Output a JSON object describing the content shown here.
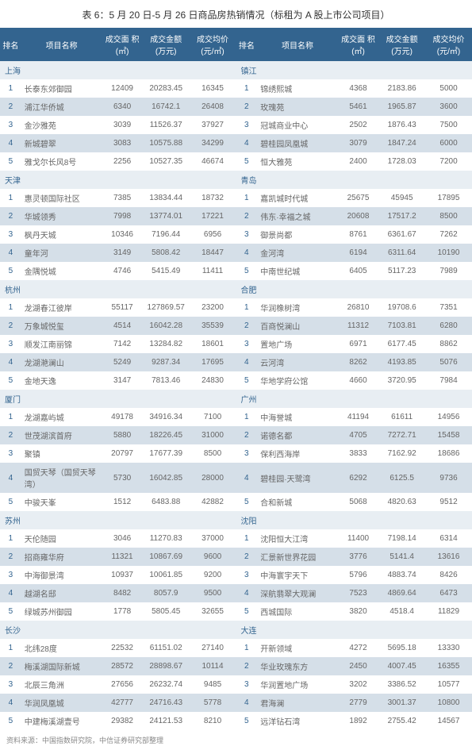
{
  "title": "表 6：5 月 20 日-5 月 26 日商品房热销情况（标租为 A 股上市公司项目）",
  "headers": {
    "rank": "排名",
    "name": "项目名称",
    "area": "成交面\n积(㎡)",
    "amount": "成交金额\n(万元)",
    "price": "成交均价\n(元/㎡)"
  },
  "source": "资料来源：中国指数研究院，中信证券研究部整理",
  "colors": {
    "header_bg": "#33648f",
    "header_fg": "#ffffff",
    "city_bg": "#e8eef3",
    "city_fg": "#33648f",
    "row_alt_bg": "#d5dfe8",
    "text": "#666666",
    "bg": "#ffffff"
  },
  "blocks": [
    {
      "left_city": "上海",
      "right_city": "镇江",
      "rows": [
        {
          "rank": 1,
          "ln": "长泰东郊御园",
          "la": 12409,
          "lm": "20283.45",
          "lp": 16345,
          "rn": "锦绣熙城",
          "ra": 4368,
          "rm": "2183.86",
          "rp": 5000
        },
        {
          "rank": 2,
          "ln": "浦江华侨城",
          "la": 6340,
          "lm": "16742.1",
          "lp": 26408,
          "rn": "玫瑰苑",
          "ra": 5461,
          "rm": "1965.87",
          "rp": 3600
        },
        {
          "rank": 3,
          "ln": "金沙雅苑",
          "la": 3039,
          "lm": "11526.37",
          "lp": 37927,
          "rn": "冠城商业中心",
          "ra": 2502,
          "rm": "1876.43",
          "rp": 7500
        },
        {
          "rank": 4,
          "ln": "新城碧翠",
          "la": 3083,
          "lm": "10575.88",
          "lp": 34299,
          "rn": "碧桂园凤凰城",
          "ra": 3079,
          "rm": "1847.24",
          "rp": 6000
        },
        {
          "rank": 5,
          "ln": "雅戈尔长风8号",
          "la": 2256,
          "lm": "10527.35",
          "lp": 46674,
          "rn": "恒大雅苑",
          "ra": 2400,
          "rm": "1728.03",
          "rp": 7200
        }
      ]
    },
    {
      "left_city": "天津",
      "right_city": "青岛",
      "rows": [
        {
          "rank": 1,
          "ln": "惠灵顿国际社区",
          "la": 7385,
          "lm": "13834.44",
          "lp": 18732,
          "rn": "嘉凯城时代城",
          "ra": 25675,
          "rm": "45945",
          "rp": 17895
        },
        {
          "rank": 2,
          "ln": "华城领秀",
          "la": 7998,
          "lm": "13774.01",
          "lp": 17221,
          "rn": "伟东·幸福之城",
          "ra": 20608,
          "rm": "17517.2",
          "rp": 8500
        },
        {
          "rank": 3,
          "ln": "枫丹天城",
          "la": 10346,
          "lm": "7196.44",
          "lp": 6956,
          "rn": "御景尚都",
          "ra": 8761,
          "rm": "6361.67",
          "rp": 7262
        },
        {
          "rank": 4,
          "ln": "童年河",
          "la": 3149,
          "lm": "5808.42",
          "lp": 18447,
          "rn": "金河湾",
          "ra": 6194,
          "rm": "6311.64",
          "rp": 10190
        },
        {
          "rank": 5,
          "ln": "金隅悦城",
          "la": 4746,
          "lm": "5415.49",
          "lp": 11411,
          "rn": "中南世纪城",
          "ra": 6405,
          "rm": "5117.23",
          "rp": 7989
        }
      ]
    },
    {
      "left_city": "杭州",
      "right_city": "合肥",
      "rows": [
        {
          "rank": 1,
          "ln": "龙湖春江彼岸",
          "la": 55117,
          "lm": "127869.57",
          "lp": 23200,
          "rn": "华润橡树湾",
          "ra": 26810,
          "rm": "19708.6",
          "rp": 7351
        },
        {
          "rank": 2,
          "ln": "万象城悦玺",
          "la": 4514,
          "lm": "16042.28",
          "lp": 35539,
          "rn": "百商悦澜山",
          "ra": 11312,
          "rm": "7103.81",
          "rp": 6280
        },
        {
          "rank": 3,
          "ln": "顺发江南丽锦",
          "la": 7142,
          "lm": "13284.82",
          "lp": 18601,
          "rn": "置地广场",
          "ra": 6971,
          "rm": "6177.45",
          "rp": 8862
        },
        {
          "rank": 4,
          "ln": "龙湖滟澜山",
          "la": 5249,
          "lm": "9287.34",
          "lp": 17695,
          "rn": "云河湾",
          "ra": 8262,
          "rm": "4193.85",
          "rp": 5076
        },
        {
          "rank": 5,
          "ln": "金地天逸",
          "la": 3147,
          "lm": "7813.46",
          "lp": 24830,
          "rn": "华地学府公馆",
          "ra": 4660,
          "rm": "3720.95",
          "rp": 7984
        }
      ]
    },
    {
      "left_city": "厦门",
      "right_city": "广州",
      "rows": [
        {
          "rank": 1,
          "ln": "龙湖嘉屿城",
          "la": 49178,
          "lm": "34916.34",
          "lp": 7100,
          "rn": "中海誉城",
          "ra": 41194,
          "rm": "61611",
          "rp": 14956
        },
        {
          "rank": 2,
          "ln": "世茂湖滨首府",
          "la": 5880,
          "lm": "18226.45",
          "lp": 31000,
          "rn": "诺德名都",
          "ra": 4705,
          "rm": "7272.71",
          "rp": 15458
        },
        {
          "rank": 3,
          "ln": "聚镇",
          "la": 20797,
          "lm": "17677.39",
          "lp": 8500,
          "rn": "保利西海岸",
          "ra": 3833,
          "rm": "7162.92",
          "rp": 18686
        },
        {
          "rank": 4,
          "ln": "国贸天琴（国贸天琴湾）",
          "la": 5730,
          "lm": "16042.85",
          "lp": 28000,
          "rn": "碧桂园·天鹭湾",
          "ra": 6292,
          "rm": "6125.5",
          "rp": 9736
        },
        {
          "rank": 5,
          "ln": "中骏天峯",
          "la": 1512,
          "lm": "6483.88",
          "lp": 42882,
          "rn": "合和新城",
          "ra": 5068,
          "rm": "4820.63",
          "rp": 9512
        }
      ]
    },
    {
      "left_city": "苏州",
      "right_city": "沈阳",
      "rows": [
        {
          "rank": 1,
          "ln": "天伦随园",
          "la": 3046,
          "lm": "11270.83",
          "lp": 37000,
          "rn": "沈阳恒大江湾",
          "ra": 11400,
          "rm": "7198.14",
          "rp": 6314
        },
        {
          "rank": 2,
          "ln": "招商雍华府",
          "la": 11321,
          "lm": "10867.69",
          "lp": 9600,
          "rn": "汇景新世界花园",
          "ra": 3776,
          "rm": "5141.4",
          "rp": 13616
        },
        {
          "rank": 3,
          "ln": "中海御景湾",
          "la": 10937,
          "lm": "10061.85",
          "lp": 9200,
          "rn": "中海寰宇天下",
          "ra": 5796,
          "rm": "4883.74",
          "rp": 8426
        },
        {
          "rank": 4,
          "ln": "越湖名邸",
          "la": 8482,
          "lm": "8057.9",
          "lp": 9500,
          "rn": "深航翡翠大观澜",
          "ra": 7523,
          "rm": "4869.64",
          "rp": 6473
        },
        {
          "rank": 5,
          "ln": "绿城苏州御园",
          "la": 1778,
          "lm": "5805.45",
          "lp": 32655,
          "rn": "西城国际",
          "ra": 3820,
          "rm": "4518.4",
          "rp": 11829
        }
      ]
    },
    {
      "left_city": "长沙",
      "right_city": "大连",
      "rows": [
        {
          "rank": 1,
          "ln": "北纬28度",
          "la": 22532,
          "lm": "61151.02",
          "lp": 27140,
          "rn": "开新领域",
          "ra": 4272,
          "rm": "5695.18",
          "rp": 13330
        },
        {
          "rank": 2,
          "ln": "梅溪湖国际新城",
          "la": 28572,
          "lm": "28898.67",
          "lp": 10114,
          "rn": "华业玫瑰东方",
          "ra": 2450,
          "rm": "4007.45",
          "rp": 16355
        },
        {
          "rank": 3,
          "ln": "北辰三角洲",
          "la": 27656,
          "lm": "26232.74",
          "lp": 9485,
          "rn": "华润置地广场",
          "ra": 3202,
          "rm": "3386.52",
          "rp": 10577
        },
        {
          "rank": 4,
          "ln": "华润凤凰城",
          "la": 42777,
          "lm": "24716.43",
          "lp": 5778,
          "rn": "君海澜",
          "ra": 2779,
          "rm": "3001.37",
          "rp": 10800
        },
        {
          "rank": 5,
          "ln": "中建梅溪湖壹号",
          "la": 29382,
          "lm": "24121.53",
          "lp": 8210,
          "rn": "远洋钻石湾",
          "ra": 1892,
          "rm": "2755.42",
          "rp": 14567
        }
      ]
    }
  ]
}
